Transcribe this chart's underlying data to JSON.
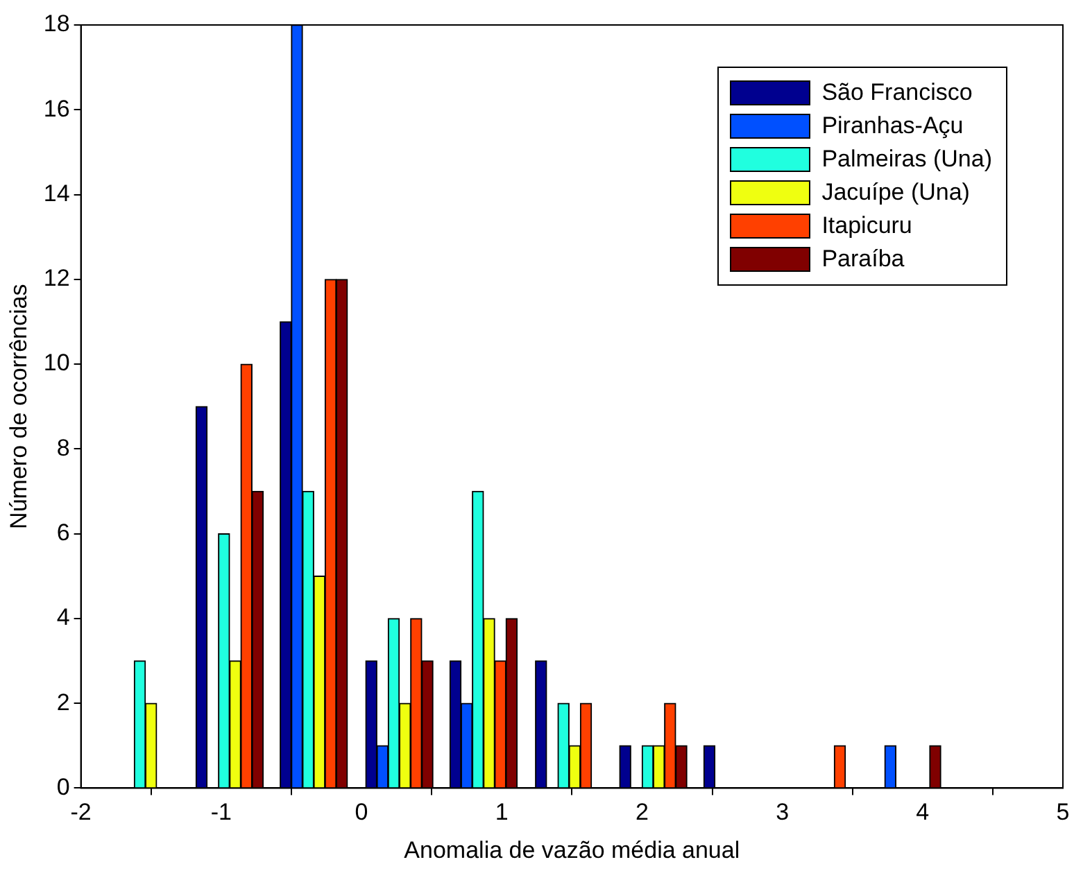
{
  "chart_data": {
    "type": "bar",
    "xlabel": "Anomalia de vazão média anual",
    "ylabel": "Número de ocorrências",
    "xlim": [
      -2,
      5
    ],
    "xticks": [
      -2,
      -1,
      0,
      1,
      2,
      3,
      4,
      5
    ],
    "ylim": [
      0,
      18
    ],
    "yticks": [
      0,
      2,
      4,
      6,
      8,
      10,
      12,
      14,
      16,
      18
    ],
    "grid": false,
    "legend": "top right",
    "series": [
      {
        "name": "São Francisco",
        "color": "#00008f",
        "x": [
          -1.14,
          -0.54,
          0.07,
          0.67,
          1.28,
          1.88,
          2.48
        ],
        "values": [
          9,
          11,
          3,
          3,
          3,
          1,
          1
        ]
      },
      {
        "name": "Piranhas-Açu",
        "color": "#0050ff",
        "x": [
          -0.46,
          0.15,
          0.75,
          3.77
        ],
        "values": [
          18,
          1,
          2,
          1
        ]
      },
      {
        "name": "Palmeiras (Una)",
        "color": "#20ffdf",
        "x": [
          -1.58,
          -0.98,
          -0.38,
          0.23,
          0.83,
          1.44,
          2.04
        ],
        "values": [
          3,
          6,
          7,
          4,
          7,
          2,
          1
        ]
      },
      {
        "name": "Jacuípe (Una)",
        "color": "#efff10",
        "x": [
          -1.5,
          -0.9,
          -0.3,
          0.31,
          0.91,
          1.52,
          2.12
        ],
        "values": [
          2,
          3,
          5,
          2,
          4,
          1,
          1
        ]
      },
      {
        "name": "Itapicuru",
        "color": "#ff4000",
        "x": [
          -0.82,
          -0.22,
          0.39,
          0.99,
          1.6,
          2.2,
          3.41
        ],
        "values": [
          10,
          12,
          4,
          3,
          2,
          2,
          1
        ]
      },
      {
        "name": "Paraíba",
        "color": "#800000",
        "x": [
          -0.74,
          -0.14,
          0.47,
          1.07,
          2.28,
          4.09
        ],
        "values": [
          7,
          12,
          3,
          4,
          1,
          1
        ]
      }
    ]
  }
}
